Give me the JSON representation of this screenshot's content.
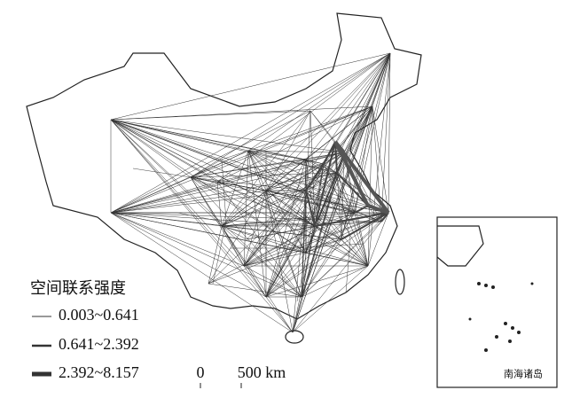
{
  "legend": {
    "title": "空间联系强度",
    "items": [
      {
        "label": "0.003~0.641"
      },
      {
        "label": "0.641~2.392"
      },
      {
        "label": "2.392~8.157"
      }
    ]
  },
  "scale_bar": {
    "labels": [
      "0",
      "500 km"
    ]
  },
  "inset": {
    "label": "南海诸岛"
  }
}
